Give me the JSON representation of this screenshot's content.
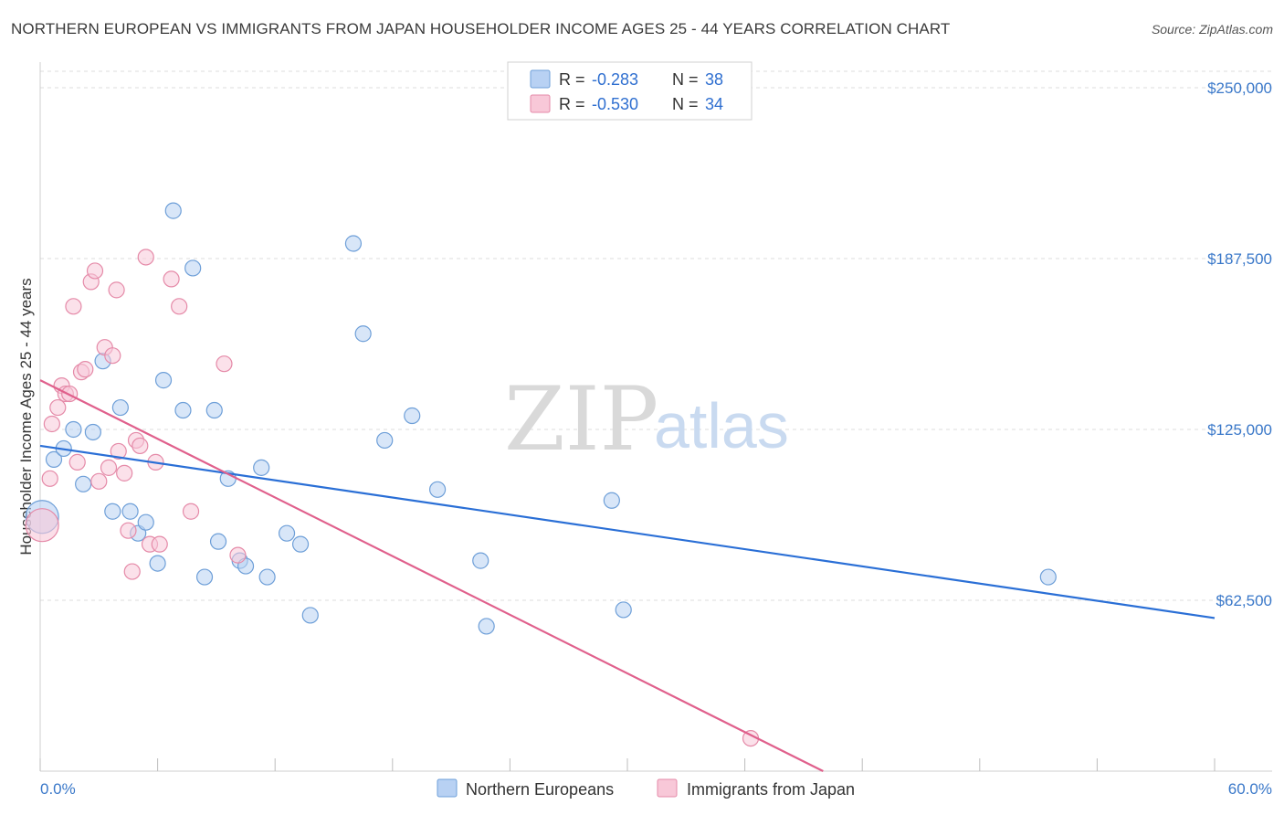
{
  "header": {
    "title": "NORTHERN EUROPEAN VS IMMIGRANTS FROM JAPAN HOUSEHOLDER INCOME AGES 25 - 44 YEARS CORRELATION CHART",
    "source": "Source: ZipAtlas.com"
  },
  "watermark": {
    "zip": "ZIP",
    "atlas": "atlas"
  },
  "legend": {
    "r_label": "R =",
    "n_label": "N =",
    "series1": {
      "r": "-0.283",
      "n": "38"
    },
    "series2": {
      "r": "-0.530",
      "n": "34"
    }
  },
  "bottom_legend": {
    "s1": "Northern Europeans",
    "s2": "Immigrants from Japan"
  },
  "chart_data": {
    "type": "scatter",
    "title": "NORTHERN EUROPEAN VS IMMIGRANTS FROM JAPAN HOUSEHOLDER INCOME AGES 25 - 44 YEARS CORRELATION CHART",
    "xlabel": "",
    "ylabel": "Householder Income Ages 25 - 44 years",
    "xlim": [
      0,
      60
    ],
    "ylim": [
      0,
      256000
    ],
    "x_tick_labels": [
      "0.0%",
      "60.0%"
    ],
    "y_ticks": [
      62500,
      125000,
      187500,
      250000
    ],
    "y_tick_labels": [
      "$62,500",
      "$125,000",
      "$187,500",
      "$250,000"
    ],
    "colors": {
      "s1_fill": "#b8d1f3",
      "s1_stroke": "#6e9fd8",
      "s1_line": "#2a6fd6",
      "s2_fill": "#f8c8d8",
      "s2_stroke": "#e58aa8",
      "s2_line": "#e0608c",
      "grid": "#dddddd",
      "tick": "#3a78c9"
    },
    "series": [
      {
        "name": "Northern Europeans",
        "trend": {
          "x0": 0,
          "y0": 119000,
          "x1": 60,
          "y1": 56000
        },
        "points": [
          {
            "x": 0.1,
            "y": 93000,
            "big": true
          },
          {
            "x": 0.7,
            "y": 114000
          },
          {
            "x": 1.2,
            "y": 118000
          },
          {
            "x": 1.7,
            "y": 125000
          },
          {
            "x": 2.2,
            "y": 105000
          },
          {
            "x": 2.7,
            "y": 124000
          },
          {
            "x": 3.2,
            "y": 150000
          },
          {
            "x": 3.7,
            "y": 95000
          },
          {
            "x": 4.1,
            "y": 133000
          },
          {
            "x": 4.6,
            "y": 95000
          },
          {
            "x": 5.0,
            "y": 87000
          },
          {
            "x": 5.4,
            "y": 91000
          },
          {
            "x": 6.0,
            "y": 76000
          },
          {
            "x": 6.3,
            "y": 143000
          },
          {
            "x": 6.8,
            "y": 205000
          },
          {
            "x": 7.3,
            "y": 132000
          },
          {
            "x": 7.8,
            "y": 184000
          },
          {
            "x": 8.4,
            "y": 71000
          },
          {
            "x": 8.9,
            "y": 132000
          },
          {
            "x": 9.1,
            "y": 84000
          },
          {
            "x": 9.6,
            "y": 107000
          },
          {
            "x": 10.2,
            "y": 77000
          },
          {
            "x": 10.5,
            "y": 75000
          },
          {
            "x": 11.3,
            "y": 111000
          },
          {
            "x": 11.6,
            "y": 71000
          },
          {
            "x": 12.6,
            "y": 87000
          },
          {
            "x": 13.3,
            "y": 83000
          },
          {
            "x": 13.8,
            "y": 57000
          },
          {
            "x": 16.0,
            "y": 193000
          },
          {
            "x": 16.5,
            "y": 160000
          },
          {
            "x": 17.6,
            "y": 121000
          },
          {
            "x": 19.0,
            "y": 130000
          },
          {
            "x": 20.3,
            "y": 103000
          },
          {
            "x": 22.5,
            "y": 77000
          },
          {
            "x": 22.8,
            "y": 53000
          },
          {
            "x": 29.2,
            "y": 99000
          },
          {
            "x": 29.8,
            "y": 59000
          },
          {
            "x": 51.5,
            "y": 71000
          }
        ]
      },
      {
        "name": "Immigrants from Japan",
        "trend": {
          "x0": 0,
          "y0": 143000,
          "x1": 40,
          "y1": 0
        },
        "points": [
          {
            "x": 0.1,
            "y": 90000,
            "big": true
          },
          {
            "x": 0.5,
            "y": 107000
          },
          {
            "x": 0.6,
            "y": 127000
          },
          {
            "x": 0.9,
            "y": 133000
          },
          {
            "x": 1.1,
            "y": 141000
          },
          {
            "x": 1.3,
            "y": 138000
          },
          {
            "x": 1.5,
            "y": 138000
          },
          {
            "x": 1.7,
            "y": 170000
          },
          {
            "x": 1.9,
            "y": 113000
          },
          {
            "x": 2.1,
            "y": 146000
          },
          {
            "x": 2.3,
            "y": 147000
          },
          {
            "x": 2.6,
            "y": 179000
          },
          {
            "x": 2.8,
            "y": 183000
          },
          {
            "x": 3.0,
            "y": 106000
          },
          {
            "x": 3.3,
            "y": 155000
          },
          {
            "x": 3.5,
            "y": 111000
          },
          {
            "x": 3.7,
            "y": 152000
          },
          {
            "x": 3.9,
            "y": 176000
          },
          {
            "x": 4.0,
            "y": 117000
          },
          {
            "x": 4.3,
            "y": 109000
          },
          {
            "x": 4.5,
            "y": 88000
          },
          {
            "x": 4.7,
            "y": 73000
          },
          {
            "x": 4.9,
            "y": 121000
          },
          {
            "x": 5.1,
            "y": 119000
          },
          {
            "x": 5.4,
            "y": 188000
          },
          {
            "x": 5.6,
            "y": 83000
          },
          {
            "x": 5.9,
            "y": 113000
          },
          {
            "x": 6.1,
            "y": 83000
          },
          {
            "x": 6.7,
            "y": 180000
          },
          {
            "x": 7.1,
            "y": 170000
          },
          {
            "x": 7.7,
            "y": 95000
          },
          {
            "x": 9.4,
            "y": 149000
          },
          {
            "x": 10.1,
            "y": 79000
          },
          {
            "x": 36.3,
            "y": 12000
          }
        ]
      }
    ]
  }
}
